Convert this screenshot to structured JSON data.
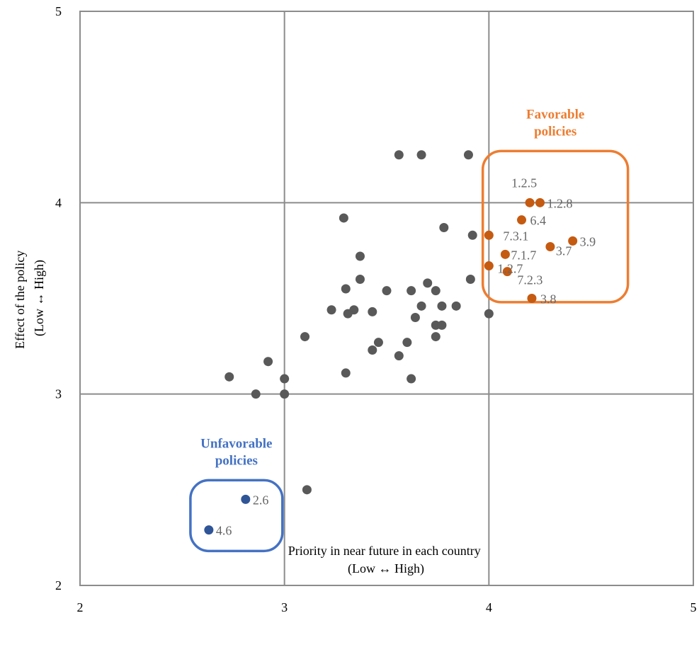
{
  "chart_data": {
    "type": "scatter",
    "title": "",
    "xlabel": [
      "Priority in near future in each country",
      "(Low ↔ High)"
    ],
    "ylabel": [
      "Effect of the policy",
      "(Low ↔ High)"
    ],
    "xlim": [
      2,
      5
    ],
    "ylim": [
      2,
      5
    ],
    "xticks": [
      "2",
      "3",
      "4",
      "5"
    ],
    "yticks": [
      "2",
      "3",
      "4",
      "5"
    ],
    "grid": true,
    "colors": {
      "neutral": "#595959",
      "favorable": "#c55a11",
      "unfavorable": "#2f5597",
      "favorable_box": "#ed7d31",
      "unfavorable_box": "#4472c4"
    },
    "series": [
      {
        "key": "neutral",
        "points": [
          {
            "x": 3.56,
            "y": 4.25
          },
          {
            "x": 3.67,
            "y": 4.25
          },
          {
            "x": 3.9,
            "y": 4.25
          },
          {
            "x": 3.29,
            "y": 3.92
          },
          {
            "x": 3.78,
            "y": 3.87
          },
          {
            "x": 3.92,
            "y": 3.83
          },
          {
            "x": 3.37,
            "y": 3.72
          },
          {
            "x": 3.37,
            "y": 3.6
          },
          {
            "x": 3.91,
            "y": 3.6
          },
          {
            "x": 3.7,
            "y": 3.58
          },
          {
            "x": 3.3,
            "y": 3.55
          },
          {
            "x": 3.5,
            "y": 3.54
          },
          {
            "x": 3.62,
            "y": 3.54
          },
          {
            "x": 3.74,
            "y": 3.54
          },
          {
            "x": 3.23,
            "y": 3.44
          },
          {
            "x": 3.34,
            "y": 3.44
          },
          {
            "x": 3.31,
            "y": 3.42
          },
          {
            "x": 3.43,
            "y": 3.43
          },
          {
            "x": 3.64,
            "y": 3.4
          },
          {
            "x": 3.67,
            "y": 3.46
          },
          {
            "x": 3.77,
            "y": 3.46
          },
          {
            "x": 3.84,
            "y": 3.46
          },
          {
            "x": 4.0,
            "y": 3.42
          },
          {
            "x": 3.74,
            "y": 3.36
          },
          {
            "x": 3.77,
            "y": 3.36
          },
          {
            "x": 3.74,
            "y": 3.3
          },
          {
            "x": 3.1,
            "y": 3.3
          },
          {
            "x": 3.46,
            "y": 3.27
          },
          {
            "x": 3.6,
            "y": 3.27
          },
          {
            "x": 3.43,
            "y": 3.23
          },
          {
            "x": 3.56,
            "y": 3.2
          },
          {
            "x": 2.92,
            "y": 3.17
          },
          {
            "x": 3.3,
            "y": 3.11
          },
          {
            "x": 2.73,
            "y": 3.09
          },
          {
            "x": 3.0,
            "y": 3.08
          },
          {
            "x": 3.62,
            "y": 3.08
          },
          {
            "x": 2.86,
            "y": 3.0
          },
          {
            "x": 3.0,
            "y": 3.0
          },
          {
            "x": 3.11,
            "y": 2.5
          }
        ]
      },
      {
        "key": "favorable",
        "points": [
          {
            "x": 4.2,
            "y": 4.0,
            "label": "1.2.5",
            "lx": -8,
            "ly": -22,
            "anchor": "middle"
          },
          {
            "x": 4.25,
            "y": 4.0,
            "label": "1.2.8",
            "lx": 10,
            "ly": 7,
            "anchor": "start"
          },
          {
            "x": 4.16,
            "y": 3.91,
            "label": "6.4",
            "lx": 12,
            "ly": 7,
            "anchor": "start"
          },
          {
            "x": 4.0,
            "y": 3.83,
            "label": "7.3.1",
            "lx": 20,
            "ly": 7,
            "anchor": "start"
          },
          {
            "x": 4.41,
            "y": 3.8,
            "label": "3.9",
            "lx": 10,
            "ly": 7,
            "anchor": "start"
          },
          {
            "x": 4.3,
            "y": 3.77,
            "label": "3.7",
            "lx": 8,
            "ly": 12,
            "anchor": "start"
          },
          {
            "x": 4.08,
            "y": 3.73,
            "label": "7.1.7",
            "lx": 8,
            "ly": 7,
            "anchor": "start"
          },
          {
            "x": 4.0,
            "y": 3.67,
            "label": "1.2.7",
            "lx": 12,
            "ly": 10,
            "anchor": "start"
          },
          {
            "x": 4.09,
            "y": 3.64,
            "label": "7.2.3",
            "lx": 14,
            "ly": 18,
            "anchor": "start"
          },
          {
            "x": 4.21,
            "y": 3.5,
            "label": "3.8",
            "lx": 12,
            "ly": 7,
            "anchor": "start"
          }
        ]
      },
      {
        "key": "unfavorable",
        "points": [
          {
            "x": 2.81,
            "y": 2.45,
            "label": "2.6",
            "lx": 10,
            "ly": 7,
            "anchor": "start"
          },
          {
            "x": 2.63,
            "y": 2.29,
            "label": "4.6",
            "lx": 10,
            "ly": 7,
            "anchor": "start"
          }
        ]
      }
    ],
    "groups": [
      {
        "key": "favorable",
        "title": [
          "Favorable",
          "policies"
        ],
        "box": {
          "x0": 3.97,
          "x1": 4.68,
          "y0": 3.48,
          "y1": 4.27
        }
      },
      {
        "key": "unfavorable",
        "title": [
          "Unfavorable",
          "policies"
        ],
        "box": {
          "x0": 2.54,
          "x1": 2.99,
          "y0": 2.18,
          "y1": 2.55
        }
      }
    ]
  }
}
